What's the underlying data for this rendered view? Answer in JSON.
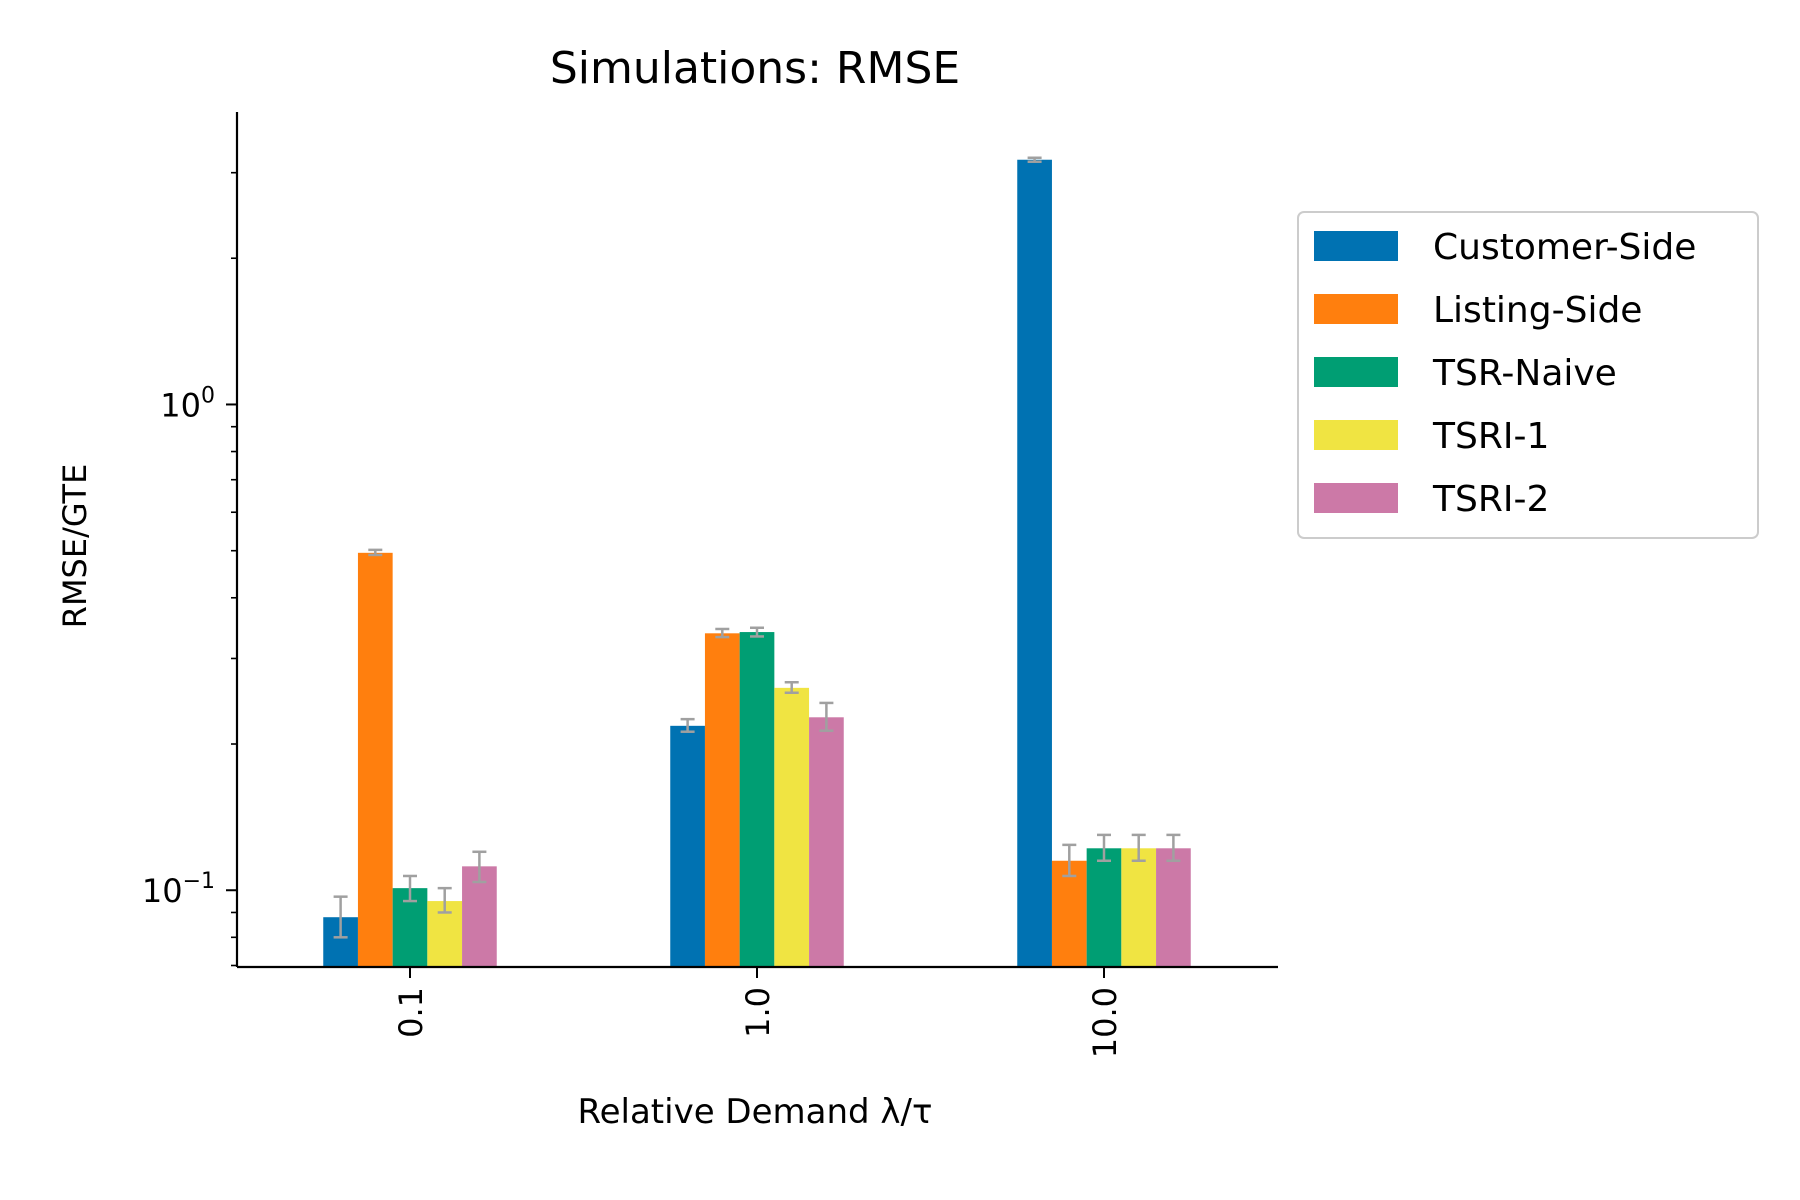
{
  "chart_data": {
    "type": "bar",
    "title": "Simulations: RMSE",
    "xlabel": "Relative Demand λ/τ",
    "ylabel": "RMSE/GTE",
    "yscale": "log",
    "ylim": [
      0.0695,
      4.0
    ],
    "categories": [
      "0.1",
      "1.0",
      "10.0"
    ],
    "y_ticks": [
      {
        "value": 0.1,
        "base": "10",
        "exp": "−1"
      },
      {
        "value": 1.0,
        "base": "10",
        "exp": "0"
      }
    ],
    "legend_position": "upper-right-outside",
    "error_bar_color": "#a0a0a0",
    "series": [
      {
        "name": "Customer-Side",
        "color": "#0072b2",
        "values": [
          0.088,
          0.218,
          3.19
        ],
        "errors": [
          [
            0.08,
            0.097
          ],
          [
            0.212,
            0.225
          ],
          [
            3.16,
            3.22
          ]
        ]
      },
      {
        "name": "Listing-Side",
        "color": "#ff7f0e",
        "values": [
          0.495,
          0.338,
          0.115
        ],
        "errors": [
          [
            0.49,
            0.502
          ],
          [
            0.332,
            0.345
          ],
          [
            0.107,
            0.124
          ]
        ]
      },
      {
        "name": "TSR-Naive",
        "color": "#009e73",
        "values": [
          0.101,
          0.34,
          0.122
        ],
        "errors": [
          [
            0.095,
            0.107
          ],
          [
            0.333,
            0.347
          ],
          [
            0.115,
            0.13
          ]
        ]
      },
      {
        "name": "TSRI-1",
        "color": "#f0e442",
        "values": [
          0.095,
          0.261,
          0.122
        ],
        "errors": [
          [
            0.09,
            0.101
          ],
          [
            0.255,
            0.268
          ],
          [
            0.115,
            0.13
          ]
        ]
      },
      {
        "name": "TSRI-2",
        "color": "#cc79a7",
        "values": [
          0.112,
          0.227,
          0.122
        ],
        "errors": [
          [
            0.104,
            0.12
          ],
          [
            0.213,
            0.243
          ],
          [
            0.115,
            0.13
          ]
        ]
      }
    ]
  }
}
